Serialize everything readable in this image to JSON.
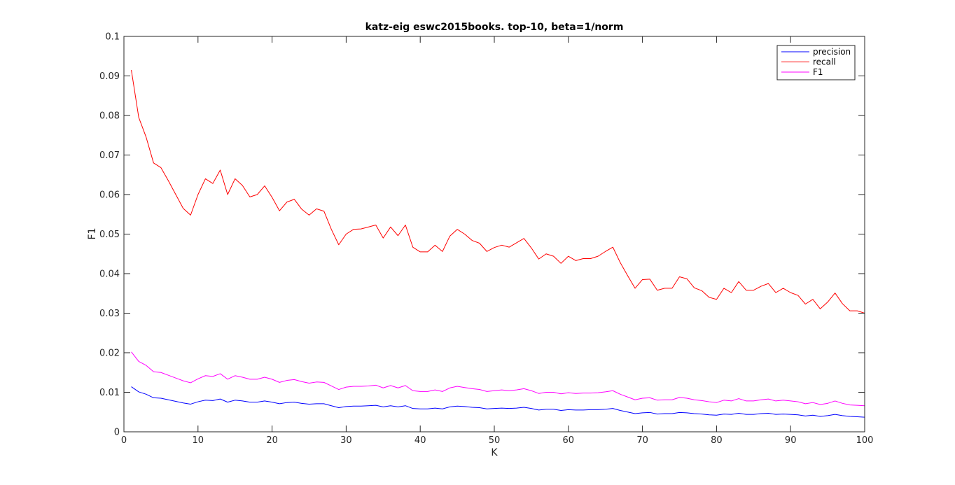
{
  "chart_data": {
    "type": "line",
    "title": "katz-eig eswc2015books. top-10, beta=1/norm",
    "xlabel": "K",
    "ylabel": "F1",
    "xlim": [
      0,
      100
    ],
    "ylim": [
      0,
      0.1
    ],
    "xticks": [
      "0",
      "10",
      "20",
      "30",
      "40",
      "50",
      "60",
      "70",
      "80",
      "90",
      "100"
    ],
    "yticks": [
      "0",
      "0.01",
      "0.02",
      "0.03",
      "0.04",
      "0.05",
      "0.06",
      "0.07",
      "0.08",
      "0.09",
      "0.1"
    ],
    "grid": false,
    "legend_position": "top-right",
    "x": [
      1,
      2,
      3,
      4,
      5,
      6,
      7,
      8,
      9,
      10,
      11,
      12,
      13,
      14,
      15,
      16,
      17,
      18,
      19,
      20,
      21,
      22,
      23,
      24,
      25,
      26,
      27,
      28,
      29,
      30,
      31,
      32,
      33,
      34,
      35,
      36,
      37,
      38,
      39,
      40,
      41,
      42,
      43,
      44,
      45,
      46,
      47,
      48,
      49,
      50,
      51,
      52,
      53,
      54,
      55,
      56,
      57,
      58,
      59,
      60,
      61,
      62,
      63,
      64,
      65,
      66,
      67,
      68,
      69,
      70,
      71,
      72,
      73,
      74,
      75,
      76,
      77,
      78,
      79,
      80,
      81,
      82,
      83,
      84,
      85,
      86,
      87,
      88,
      89,
      90,
      91,
      92,
      93,
      94,
      95,
      96,
      97,
      98,
      99,
      100
    ],
    "series": [
      {
        "name": "precision",
        "color": "#0000ff",
        "values": [
          0.0114,
          0.0101,
          0.0095,
          0.0086,
          0.0085,
          0.0081,
          0.0077,
          0.0073,
          0.007,
          0.0076,
          0.008,
          0.0079,
          0.0083,
          0.0075,
          0.008,
          0.0078,
          0.0075,
          0.0075,
          0.0078,
          0.0075,
          0.0071,
          0.0074,
          0.0075,
          0.0072,
          0.007,
          0.0071,
          0.0071,
          0.0066,
          0.0061,
          0.0064,
          0.0065,
          0.0065,
          0.0066,
          0.0067,
          0.0063,
          0.0066,
          0.0063,
          0.0066,
          0.0059,
          0.0058,
          0.0058,
          0.006,
          0.0058,
          0.0063,
          0.0065,
          0.0064,
          0.0062,
          0.0061,
          0.0058,
          0.0059,
          0.006,
          0.0059,
          0.006,
          0.0062,
          0.0059,
          0.0055,
          0.0057,
          0.0057,
          0.0054,
          0.0056,
          0.0055,
          0.0055,
          0.0056,
          0.0056,
          0.0057,
          0.0059,
          0.0054,
          0.005,
          0.0046,
          0.0048,
          0.0049,
          0.0045,
          0.0046,
          0.0046,
          0.0049,
          0.0048,
          0.0046,
          0.0045,
          0.0043,
          0.0042,
          0.0045,
          0.0044,
          0.0047,
          0.0044,
          0.0044,
          0.0046,
          0.0047,
          0.0044,
          0.0045,
          0.0044,
          0.0043,
          0.004,
          0.0042,
          0.0039,
          0.0041,
          0.0044,
          0.0041,
          0.0039,
          0.0038,
          0.0037
        ]
      },
      {
        "name": "recall",
        "color": "#ff0000",
        "values": [
          0.0915,
          0.0795,
          0.0745,
          0.068,
          0.0668,
          0.0635,
          0.06,
          0.0565,
          0.0548,
          0.06,
          0.064,
          0.0628,
          0.0662,
          0.06,
          0.064,
          0.0623,
          0.0594,
          0.06,
          0.0622,
          0.0593,
          0.0559,
          0.0581,
          0.0588,
          0.0563,
          0.0548,
          0.0564,
          0.0558,
          0.0512,
          0.0473,
          0.05,
          0.0512,
          0.0513,
          0.0518,
          0.0523,
          0.049,
          0.0518,
          0.0496,
          0.0523,
          0.0467,
          0.0455,
          0.0455,
          0.0472,
          0.0456,
          0.0495,
          0.0512,
          0.05,
          0.0484,
          0.0477,
          0.0456,
          0.0466,
          0.0472,
          0.0467,
          0.0478,
          0.0489,
          0.0465,
          0.0437,
          0.045,
          0.0444,
          0.0426,
          0.0444,
          0.0433,
          0.0438,
          0.0438,
          0.0444,
          0.0456,
          0.0467,
          0.0428,
          0.0395,
          0.0363,
          0.0385,
          0.0386,
          0.0358,
          0.0363,
          0.0363,
          0.0392,
          0.0387,
          0.0364,
          0.0357,
          0.034,
          0.0335,
          0.0363,
          0.0352,
          0.038,
          0.0358,
          0.0358,
          0.0368,
          0.0375,
          0.0352,
          0.0363,
          0.0352,
          0.0345,
          0.0323,
          0.0335,
          0.0311,
          0.0328,
          0.0351,
          0.0324,
          0.0306,
          0.0306,
          0.03
        ]
      },
      {
        "name": "F1",
        "color": "#ff00ff",
        "values": [
          0.0202,
          0.0178,
          0.0168,
          0.0152,
          0.015,
          0.0143,
          0.0136,
          0.0129,
          0.0124,
          0.0134,
          0.0142,
          0.014,
          0.0147,
          0.0133,
          0.0142,
          0.0138,
          0.0133,
          0.0133,
          0.0138,
          0.0133,
          0.0125,
          0.013,
          0.0132,
          0.0127,
          0.0123,
          0.0126,
          0.0125,
          0.0116,
          0.0107,
          0.0113,
          0.0115,
          0.0115,
          0.0116,
          0.0118,
          0.0111,
          0.0117,
          0.0111,
          0.0117,
          0.0104,
          0.0102,
          0.0102,
          0.0106,
          0.0102,
          0.0111,
          0.0115,
          0.0112,
          0.0109,
          0.0107,
          0.0102,
          0.0104,
          0.0106,
          0.0104,
          0.0106,
          0.0109,
          0.0104,
          0.0097,
          0.01,
          0.01,
          0.0096,
          0.0099,
          0.0097,
          0.0098,
          0.0098,
          0.0099,
          0.0101,
          0.0104,
          0.0095,
          0.0088,
          0.0081,
          0.0085,
          0.0086,
          0.008,
          0.0081,
          0.0081,
          0.0087,
          0.0085,
          0.0081,
          0.0079,
          0.0076,
          0.0074,
          0.008,
          0.0078,
          0.0084,
          0.0078,
          0.0078,
          0.0081,
          0.0083,
          0.0078,
          0.008,
          0.0078,
          0.0076,
          0.0071,
          0.0074,
          0.0069,
          0.0072,
          0.0078,
          0.0072,
          0.0068,
          0.0067,
          0.0066
        ]
      }
    ]
  }
}
